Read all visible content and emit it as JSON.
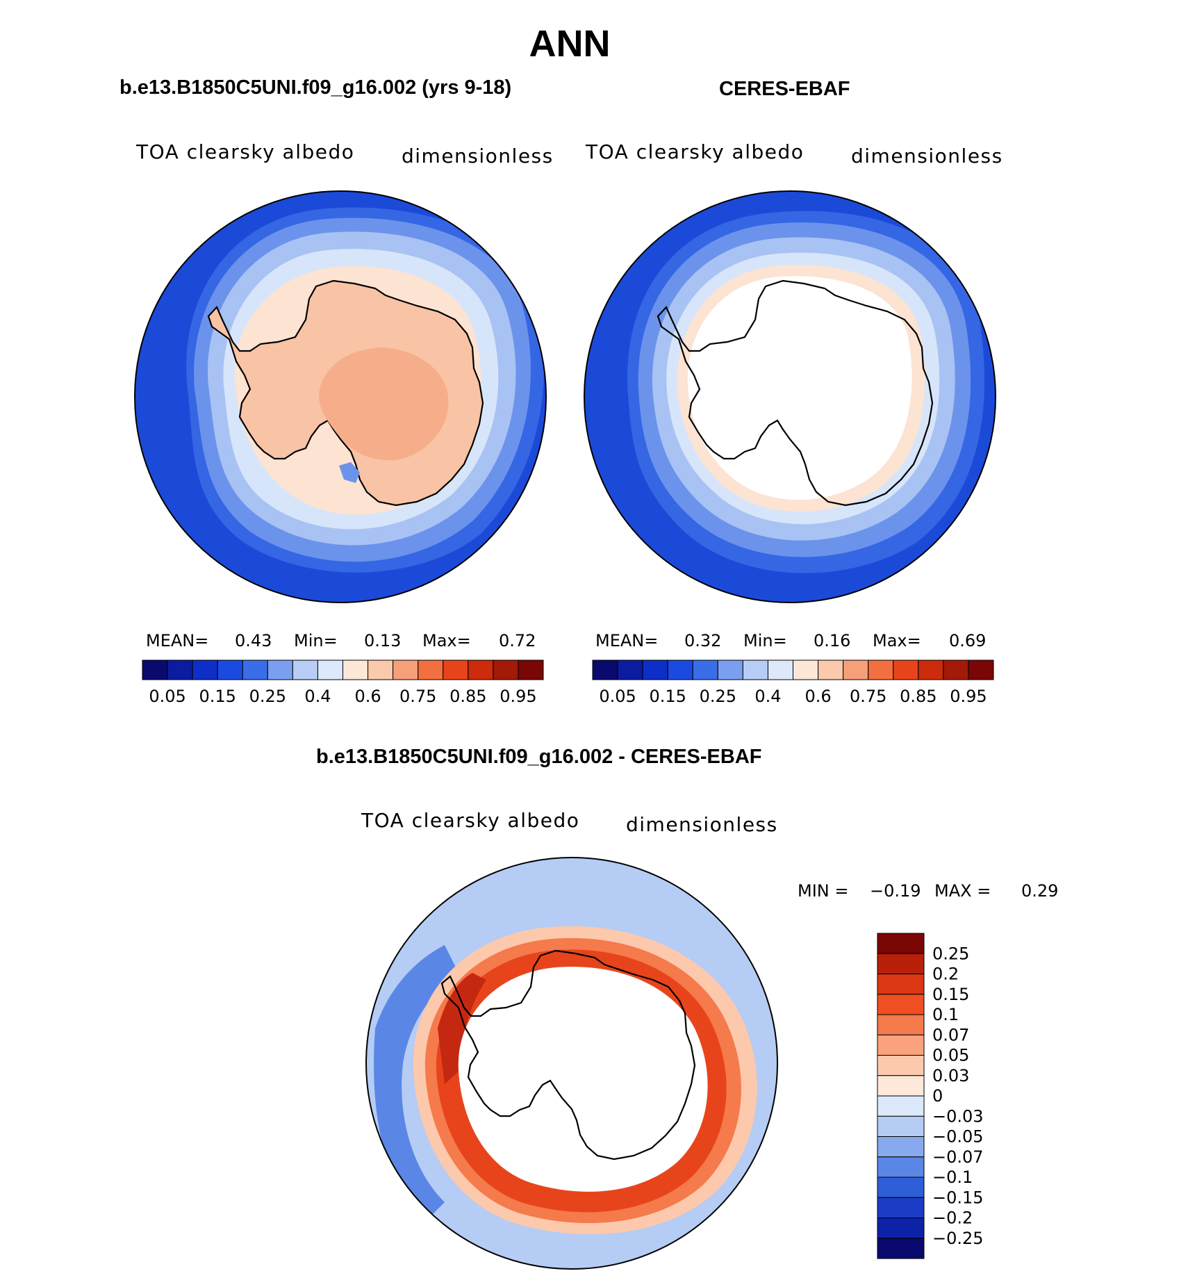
{
  "page_title": "ANN",
  "panels": {
    "model": {
      "title": "b.e13.B1850C5UNI.f09_g16.002 (yrs 9-18)",
      "variable": "TOA clearsky albedo",
      "units": "dimensionless",
      "stats": {
        "mean_label": "MEAN=",
        "mean": "0.43",
        "min_label": "Min=",
        "min": "0.13",
        "max_label": "Max=",
        "max": "0.72"
      }
    },
    "obs": {
      "title": "CERES-EBAF",
      "variable": "TOA clearsky albedo",
      "units": "dimensionless",
      "stats": {
        "mean_label": "MEAN=",
        "mean": "0.32",
        "min_label": "Min=",
        "min": "0.16",
        "max_label": "Max=",
        "max": "0.69"
      }
    },
    "diff": {
      "title": "b.e13.B1850C5UNI.f09_g16.002 - CERES-EBAF",
      "variable": "TOA clearsky albedo",
      "units": "dimensionless",
      "stats": {
        "min_label": "MIN =",
        "min": "−0.19",
        "max_label": "MAX =",
        "max": "0.29"
      }
    }
  },
  "colorbars": {
    "abs_labels": [
      "0.05",
      "0.15",
      "0.25",
      "0.4",
      "0.6",
      "0.75",
      "0.85",
      "0.95"
    ],
    "abs_colors": [
      "#0a0a6e",
      "#0c1ca0",
      "#0d2fc8",
      "#1a4ae0",
      "#3a6de8",
      "#7b9ff0",
      "#b7cdf5",
      "#dde9fb",
      "#fde8d8",
      "#fbc9ac",
      "#f6a07a",
      "#f2703f",
      "#e8441c",
      "#cc2c0c",
      "#a31a08",
      "#7a0606"
    ],
    "diff_labels": [
      "0.25",
      "0.2",
      "0.15",
      "0.1",
      "0.07",
      "0.05",
      "0.03",
      "0",
      "−0.03",
      "−0.05",
      "−0.07",
      "−0.1",
      "−0.15",
      "−0.2",
      "−0.25"
    ],
    "diff_colors": [
      "#7a0606",
      "#b8200a",
      "#dc3612",
      "#f04f22",
      "#f57a4c",
      "#f9a27c",
      "#fcc9ad",
      "#fde8da",
      "#dce9fb",
      "#b5ccf4",
      "#87a9ee",
      "#5a86e6",
      "#2e5ed8",
      "#1b3dc6",
      "#0d22a6",
      "#0a0a6e"
    ]
  },
  "map_colors": {
    "open_ocean": "#1c4ad8",
    "band2": "#3566e4",
    "band3": "#6b93ec",
    "band4": "#a8c2f3",
    "band5": "#d7e5fa",
    "ice_coast": "#fce3d2",
    "continent": "#f9c3a6",
    "interior": "#f6ae8a",
    "missing": "#ffffff",
    "diff_ocean": "#b5ccf4",
    "diff_neg": "#5a86e6",
    "diff_pos1": "#fcc9ad",
    "diff_pos2": "#f57a4c",
    "diff_pos3": "#e8441c",
    "diff_pos4": "#c52810"
  }
}
